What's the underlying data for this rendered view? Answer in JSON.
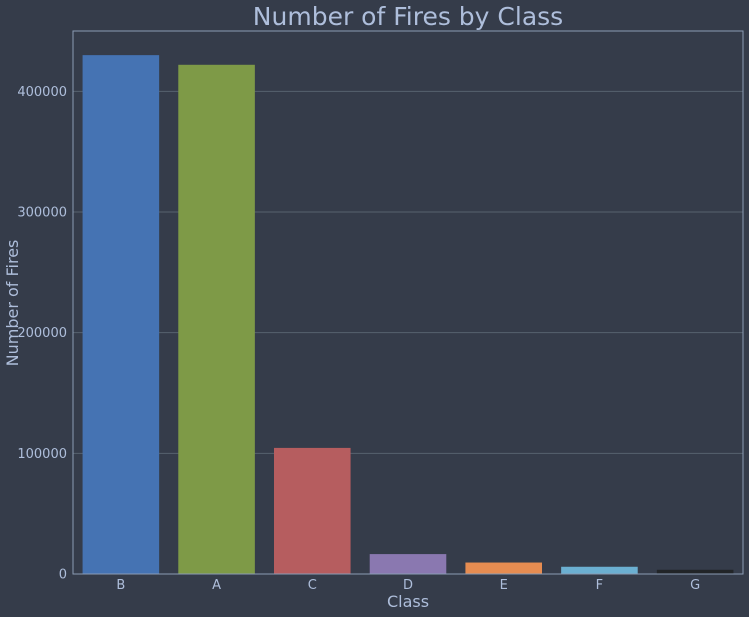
{
  "chart_data": {
    "type": "bar",
    "title": "Number of Fires by Class",
    "xlabel": "Class",
    "ylabel": "Number of Fires",
    "categories": [
      "B",
      "A",
      "C",
      "D",
      "E",
      "F",
      "G"
    ],
    "values": [
      430000,
      422000,
      104500,
      16500,
      9500,
      6000,
      3500
    ],
    "colors": [
      "#4573b3",
      "#7e9a47",
      "#b65d5f",
      "#8a78b0",
      "#e68c51",
      "#6bafd1",
      "#222528"
    ],
    "ylim": [
      0,
      450000
    ],
    "yticks": [
      0,
      100000,
      200000,
      300000,
      400000
    ],
    "ytick_labels": [
      "0",
      "100000",
      "200000",
      "300000",
      "400000"
    ],
    "grid": true,
    "legend": "none"
  }
}
